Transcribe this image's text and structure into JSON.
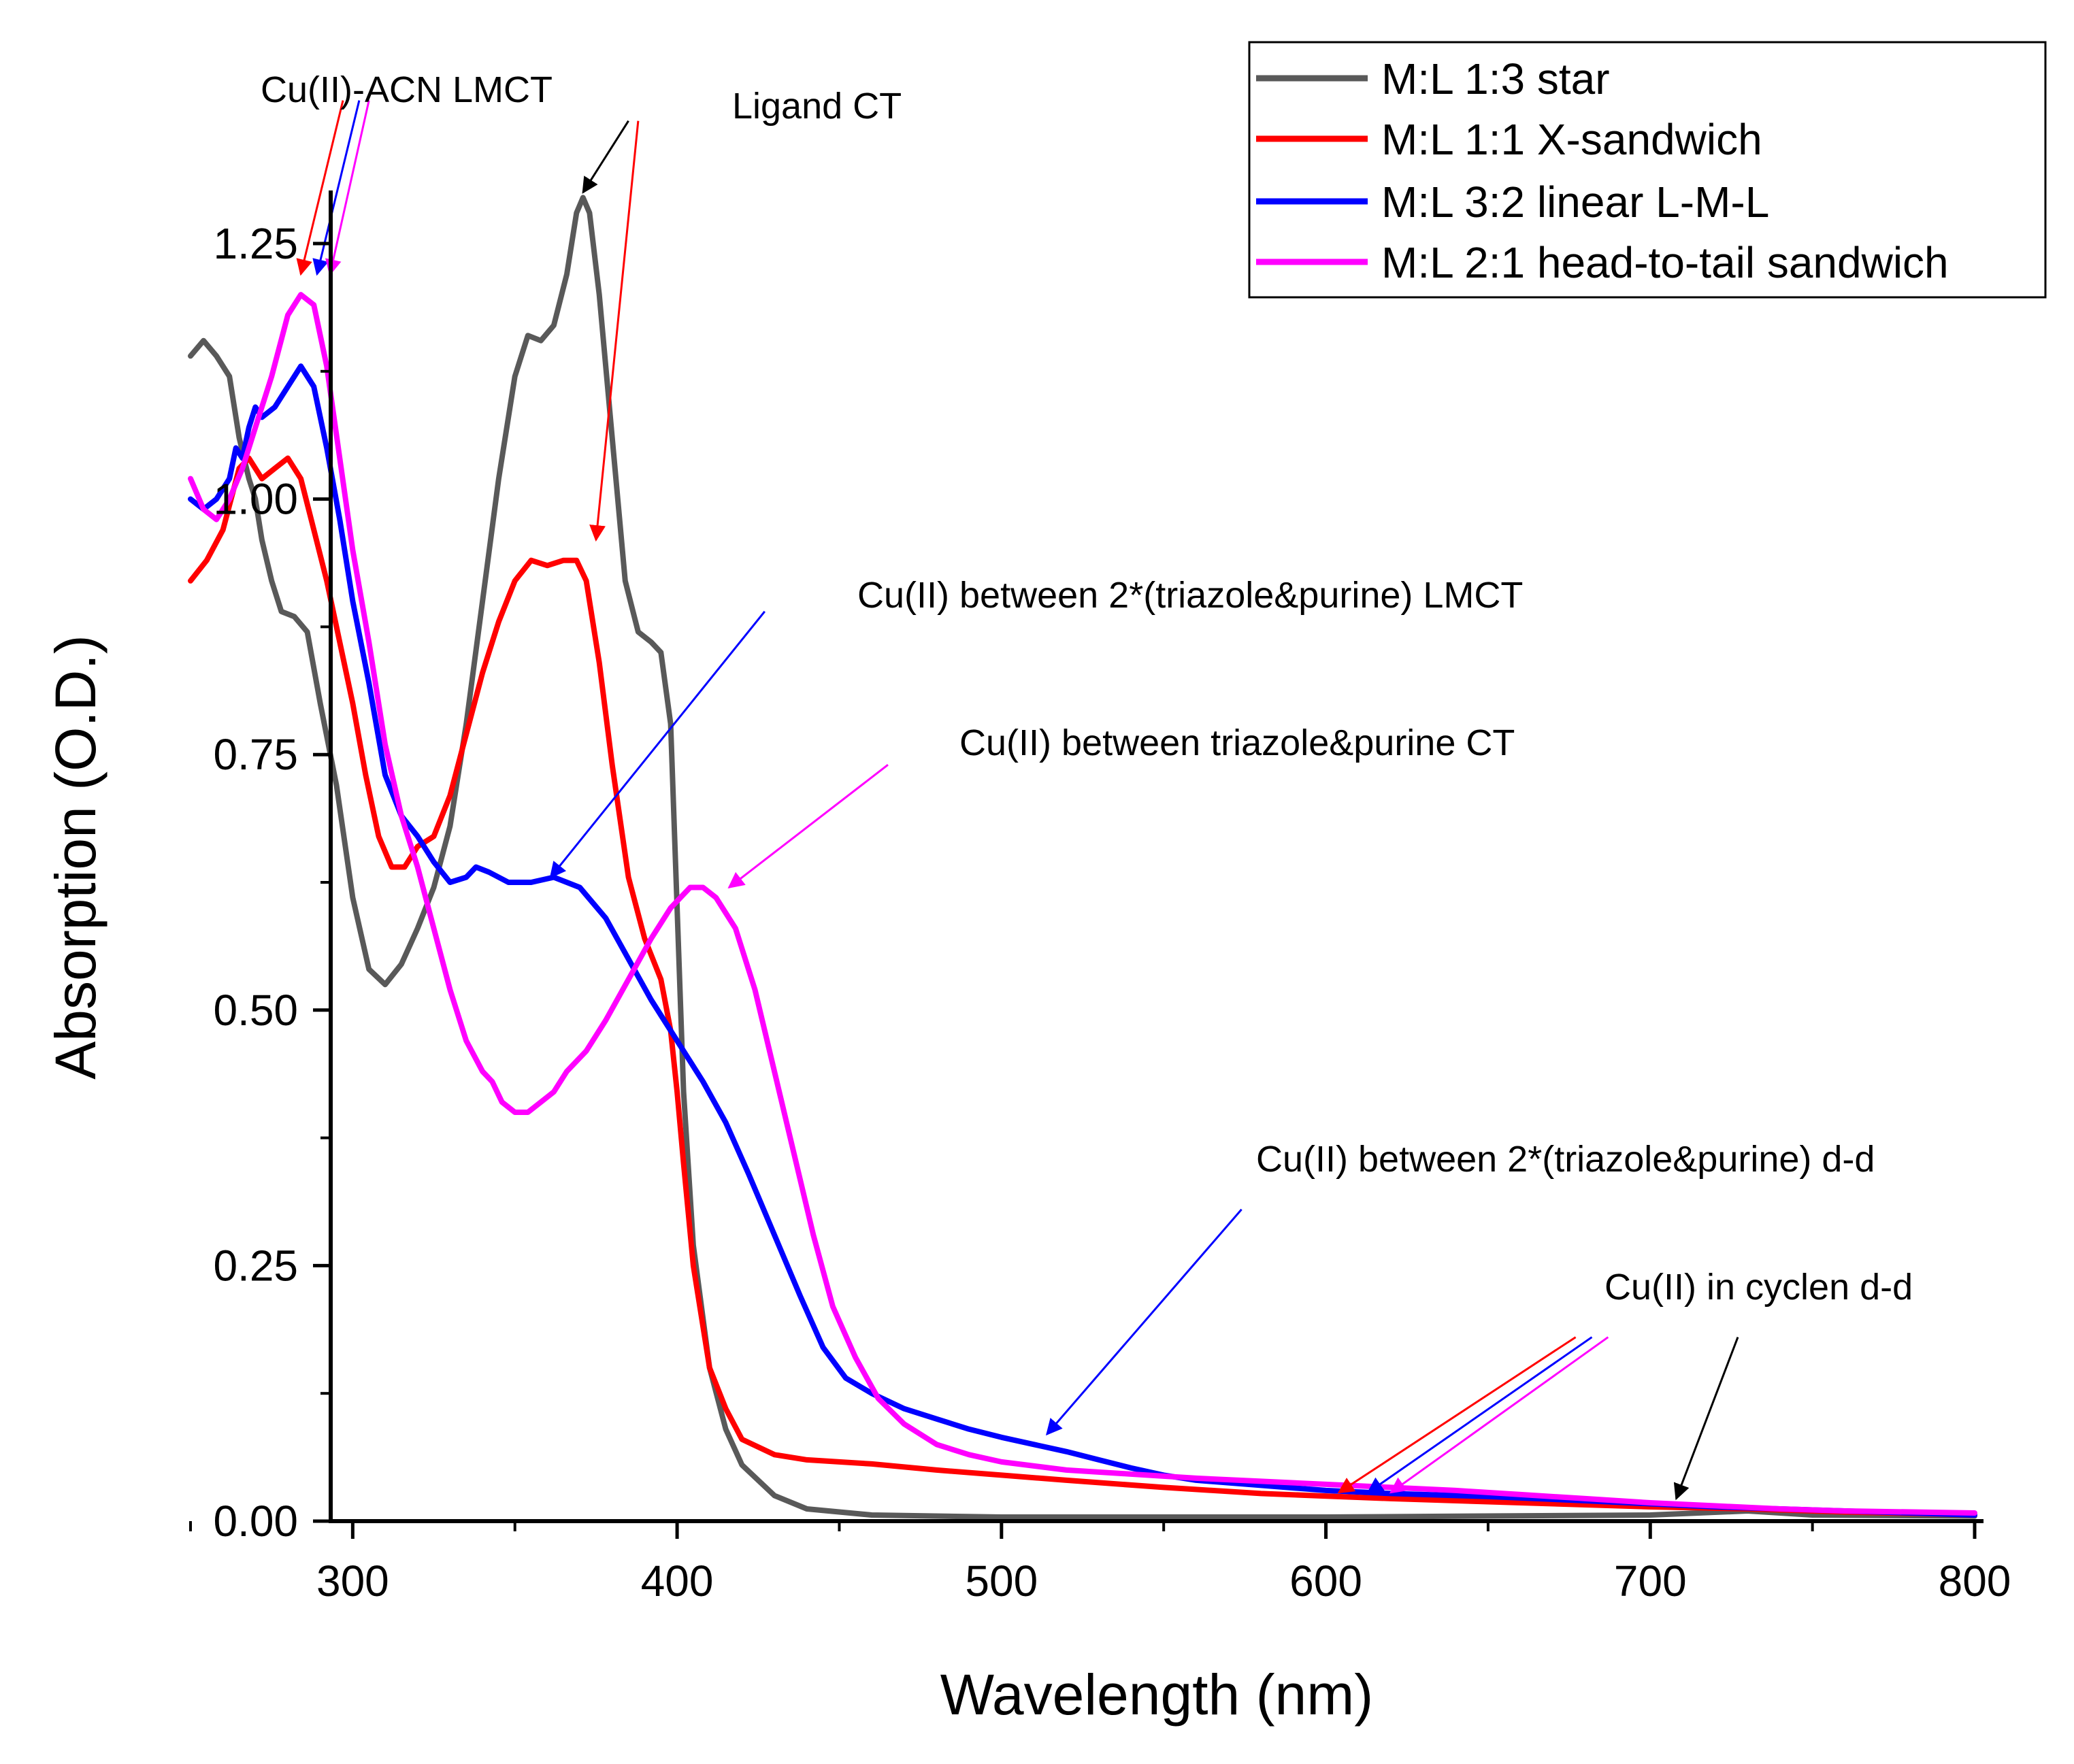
{
  "chart_data": {
    "type": "line",
    "title": "",
    "xlabel": "Wavelength (nm)",
    "ylabel": "Absorption (O.D.)",
    "xlim": [
      250,
      800
    ],
    "ylim": [
      0,
      1.3
    ],
    "xticks": [
      300,
      400,
      500,
      600,
      700,
      800
    ],
    "yticks": [
      0.0,
      0.25,
      0.5,
      0.75,
      1.0,
      1.25
    ],
    "xtick_labels": [
      "300",
      "400",
      "500",
      "600",
      "700",
      "800"
    ],
    "ytick_labels": [
      "0.00",
      "0.25",
      "0.50",
      "0.75",
      "1.00",
      "1.25"
    ],
    "grid": false,
    "legend_position": "top-right",
    "series": [
      {
        "name": "M:L 1:3 star",
        "color": "#595959",
        "points": [
          [
            250,
            1.14
          ],
          [
            254,
            1.155
          ],
          [
            258,
            1.14
          ],
          [
            262,
            1.12
          ],
          [
            265,
            1.06
          ],
          [
            268,
            1.02
          ],
          [
            270,
            1.0
          ],
          [
            272,
            0.96
          ],
          [
            275,
            0.92
          ],
          [
            278,
            0.89
          ],
          [
            282,
            0.885
          ],
          [
            286,
            0.87
          ],
          [
            290,
            0.8
          ],
          [
            295,
            0.72
          ],
          [
            300,
            0.61
          ],
          [
            305,
            0.54
          ],
          [
            310,
            0.525
          ],
          [
            315,
            0.545
          ],
          [
            320,
            0.58
          ],
          [
            325,
            0.62
          ],
          [
            330,
            0.68
          ],
          [
            335,
            0.78
          ],
          [
            340,
            0.9
          ],
          [
            345,
            1.02
          ],
          [
            350,
            1.12
          ],
          [
            354,
            1.16
          ],
          [
            358,
            1.155
          ],
          [
            362,
            1.17
          ],
          [
            366,
            1.22
          ],
          [
            369,
            1.28
          ],
          [
            371,
            1.295
          ],
          [
            373,
            1.28
          ],
          [
            376,
            1.2
          ],
          [
            380,
            1.06
          ],
          [
            384,
            0.92
          ],
          [
            388,
            0.87
          ],
          [
            392,
            0.86
          ],
          [
            395,
            0.85
          ],
          [
            398,
            0.78
          ],
          [
            400,
            0.6
          ],
          [
            402,
            0.42
          ],
          [
            405,
            0.27
          ],
          [
            410,
            0.15
          ],
          [
            415,
            0.09
          ],
          [
            420,
            0.055
          ],
          [
            430,
            0.025
          ],
          [
            440,
            0.012
          ],
          [
            460,
            0.006
          ],
          [
            500,
            0.004
          ],
          [
            600,
            0.004
          ],
          [
            700,
            0.006
          ],
          [
            730,
            0.01
          ],
          [
            750,
            0.006
          ],
          [
            800,
            0.005
          ]
        ]
      },
      {
        "name": "M:L 1:1 X-sandwich",
        "color": "#ff0000",
        "points": [
          [
            250,
            0.92
          ],
          [
            255,
            0.94
          ],
          [
            260,
            0.97
          ],
          [
            265,
            1.03
          ],
          [
            268,
            1.04
          ],
          [
            272,
            1.02
          ],
          [
            276,
            1.03
          ],
          [
            280,
            1.04
          ],
          [
            284,
            1.02
          ],
          [
            288,
            0.97
          ],
          [
            292,
            0.92
          ],
          [
            296,
            0.86
          ],
          [
            300,
            0.8
          ],
          [
            304,
            0.73
          ],
          [
            308,
            0.67
          ],
          [
            312,
            0.64
          ],
          [
            316,
            0.64
          ],
          [
            320,
            0.66
          ],
          [
            325,
            0.67
          ],
          [
            330,
            0.71
          ],
          [
            335,
            0.77
          ],
          [
            340,
            0.83
          ],
          [
            345,
            0.88
          ],
          [
            350,
            0.92
          ],
          [
            355,
            0.94
          ],
          [
            360,
            0.935
          ],
          [
            365,
            0.94
          ],
          [
            369,
            0.94
          ],
          [
            372,
            0.92
          ],
          [
            376,
            0.84
          ],
          [
            380,
            0.74
          ],
          [
            385,
            0.63
          ],
          [
            390,
            0.57
          ],
          [
            395,
            0.53
          ],
          [
            398,
            0.48
          ],
          [
            400,
            0.42
          ],
          [
            402,
            0.35
          ],
          [
            405,
            0.25
          ],
          [
            410,
            0.15
          ],
          [
            415,
            0.11
          ],
          [
            420,
            0.08
          ],
          [
            430,
            0.065
          ],
          [
            440,
            0.06
          ],
          [
            460,
            0.056
          ],
          [
            480,
            0.05
          ],
          [
            500,
            0.045
          ],
          [
            520,
            0.04
          ],
          [
            550,
            0.033
          ],
          [
            580,
            0.027
          ],
          [
            620,
            0.022
          ],
          [
            660,
            0.018
          ],
          [
            700,
            0.014
          ],
          [
            730,
            0.012
          ],
          [
            760,
            0.009
          ],
          [
            800,
            0.006
          ]
        ]
      },
      {
        "name": "M:L 3:2 linear L-M-L",
        "color": "#0000ff",
        "points": [
          [
            250,
            1.0
          ],
          [
            254,
            0.99
          ],
          [
            258,
            1.0
          ],
          [
            262,
            1.02
          ],
          [
            264,
            1.05
          ],
          [
            266,
            1.04
          ],
          [
            268,
            1.07
          ],
          [
            270,
            1.09
          ],
          [
            272,
            1.08
          ],
          [
            276,
            1.09
          ],
          [
            280,
            1.11
          ],
          [
            284,
            1.13
          ],
          [
            288,
            1.11
          ],
          [
            292,
            1.05
          ],
          [
            296,
            0.98
          ],
          [
            300,
            0.9
          ],
          [
            305,
            0.82
          ],
          [
            310,
            0.73
          ],
          [
            315,
            0.69
          ],
          [
            320,
            0.67
          ],
          [
            325,
            0.645
          ],
          [
            330,
            0.625
          ],
          [
            335,
            0.63
          ],
          [
            338,
            0.64
          ],
          [
            342,
            0.635
          ],
          [
            348,
            0.625
          ],
          [
            355,
            0.625
          ],
          [
            362,
            0.63
          ],
          [
            370,
            0.62
          ],
          [
            378,
            0.59
          ],
          [
            385,
            0.55
          ],
          [
            392,
            0.51
          ],
          [
            400,
            0.47
          ],
          [
            408,
            0.43
          ],
          [
            415,
            0.39
          ],
          [
            422,
            0.34
          ],
          [
            430,
            0.28
          ],
          [
            438,
            0.22
          ],
          [
            445,
            0.17
          ],
          [
            452,
            0.14
          ],
          [
            460,
            0.125
          ],
          [
            470,
            0.11
          ],
          [
            480,
            0.1
          ],
          [
            490,
            0.09
          ],
          [
            500,
            0.082
          ],
          [
            510,
            0.075
          ],
          [
            520,
            0.068
          ],
          [
            530,
            0.06
          ],
          [
            540,
            0.052
          ],
          [
            550,
            0.045
          ],
          [
            560,
            0.04
          ],
          [
            580,
            0.035
          ],
          [
            600,
            0.03
          ],
          [
            620,
            0.027
          ],
          [
            650,
            0.024
          ],
          [
            680,
            0.02
          ],
          [
            700,
            0.017
          ],
          [
            720,
            0.014
          ],
          [
            750,
            0.011
          ],
          [
            800,
            0.006
          ]
        ]
      },
      {
        "name": "M:L 2:1 head-to-tail sandwich",
        "color": "#ff00ff",
        "points": [
          [
            250,
            1.02
          ],
          [
            254,
            0.99
          ],
          [
            258,
            0.98
          ],
          [
            262,
            1.0
          ],
          [
            266,
            1.03
          ],
          [
            270,
            1.07
          ],
          [
            275,
            1.12
          ],
          [
            280,
            1.18
          ],
          [
            284,
            1.2
          ],
          [
            288,
            1.19
          ],
          [
            292,
            1.13
          ],
          [
            296,
            1.04
          ],
          [
            300,
            0.95
          ],
          [
            305,
            0.86
          ],
          [
            310,
            0.76
          ],
          [
            315,
            0.69
          ],
          [
            320,
            0.64
          ],
          [
            325,
            0.58
          ],
          [
            330,
            0.52
          ],
          [
            335,
            0.47
          ],
          [
            340,
            0.44
          ],
          [
            343,
            0.43
          ],
          [
            346,
            0.41
          ],
          [
            350,
            0.4
          ],
          [
            354,
            0.4
          ],
          [
            358,
            0.41
          ],
          [
            362,
            0.42
          ],
          [
            366,
            0.44
          ],
          [
            372,
            0.46
          ],
          [
            378,
            0.49
          ],
          [
            385,
            0.53
          ],
          [
            392,
            0.57
          ],
          [
            398,
            0.6
          ],
          [
            404,
            0.62
          ],
          [
            408,
            0.62
          ],
          [
            412,
            0.61
          ],
          [
            418,
            0.58
          ],
          [
            424,
            0.52
          ],
          [
            430,
            0.44
          ],
          [
            436,
            0.36
          ],
          [
            442,
            0.28
          ],
          [
            448,
            0.21
          ],
          [
            455,
            0.16
          ],
          [
            462,
            0.12
          ],
          [
            470,
            0.095
          ],
          [
            480,
            0.075
          ],
          [
            490,
            0.065
          ],
          [
            500,
            0.058
          ],
          [
            520,
            0.05
          ],
          [
            540,
            0.046
          ],
          [
            560,
            0.042
          ],
          [
            580,
            0.039
          ],
          [
            600,
            0.036
          ],
          [
            620,
            0.033
          ],
          [
            640,
            0.03
          ],
          [
            660,
            0.026
          ],
          [
            680,
            0.022
          ],
          [
            700,
            0.018
          ],
          [
            720,
            0.015
          ],
          [
            740,
            0.012
          ],
          [
            760,
            0.01
          ],
          [
            800,
            0.008
          ]
        ]
      }
    ],
    "annotations": [
      {
        "text": "Cu(II)-ACN LMCT",
        "arrows": [
          {
            "color": "#ff0000",
            "from": [
              297,
              1.39
            ],
            "to": [
              284,
              1.22
            ]
          },
          {
            "color": "#0000ff",
            "from": [
              302,
              1.39
            ],
            "to": [
              289,
              1.22
            ]
          },
          {
            "color": "#ff00ff",
            "from": [
              305,
              1.39
            ],
            "to": [
              293,
              1.22
            ]
          }
        ]
      },
      {
        "text": "Ligand CT",
        "arrows": [
          {
            "color": "#000000",
            "from": [
              385,
              1.37
            ],
            "to": [
              371,
              1.3
            ]
          },
          {
            "color": "#ff0000",
            "from": [
              388,
              1.37
            ],
            "to": [
              375,
              0.96
            ]
          }
        ]
      },
      {
        "text": "Cu(II) between 2*(triazole&purine) LMCT",
        "arrows": [
          {
            "color": "#0000ff",
            "from": [
              427,
              0.89
            ],
            "to": [
              361,
              0.63
            ]
          }
        ]
      },
      {
        "text": "Cu(II) between triazole&purine CT",
        "arrows": [
          {
            "color": "#ff00ff",
            "from": [
              465,
              0.74
            ],
            "to": [
              416,
              0.62
            ]
          }
        ]
      },
      {
        "text": "Cu(II) between 2*(triazole&purine) d-d",
        "arrows": [
          {
            "color": "#0000ff",
            "from": [
              574,
              0.305
            ],
            "to": [
              514,
              0.085
            ]
          }
        ]
      },
      {
        "text": "Cu(II) in cyclen d-d",
        "arrows": [
          {
            "color": "#ff0000",
            "from": [
              677,
              0.18
            ],
            "to": [
              604,
              0.028
            ]
          },
          {
            "color": "#0000ff",
            "from": [
              682,
              0.18
            ],
            "to": [
              613,
              0.028
            ]
          },
          {
            "color": "#ff00ff",
            "from": [
              687,
              0.18
            ],
            "to": [
              620,
              0.028
            ]
          },
          {
            "color": "#000000",
            "from": [
              727,
              0.18
            ],
            "to": [
              708,
              0.022
            ]
          }
        ]
      }
    ]
  }
}
